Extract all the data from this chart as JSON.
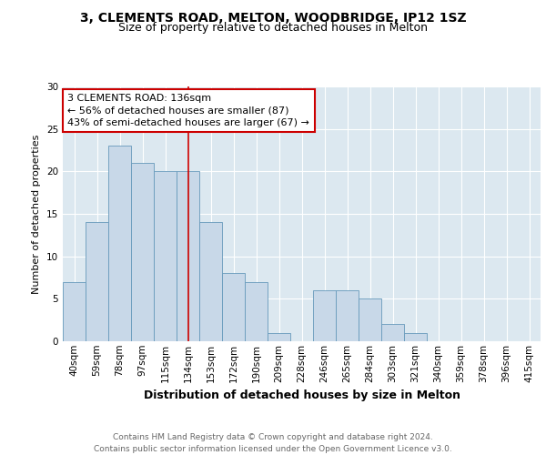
{
  "title1": "3, CLEMENTS ROAD, MELTON, WOODBRIDGE, IP12 1SZ",
  "title2": "Size of property relative to detached houses in Melton",
  "xlabel": "Distribution of detached houses by size in Melton",
  "ylabel": "Number of detached properties",
  "categories": [
    "40sqm",
    "59sqm",
    "78sqm",
    "97sqm",
    "115sqm",
    "134sqm",
    "153sqm",
    "172sqm",
    "190sqm",
    "209sqm",
    "228sqm",
    "246sqm",
    "265sqm",
    "284sqm",
    "303sqm",
    "321sqm",
    "340sqm",
    "359sqm",
    "378sqm",
    "396sqm",
    "415sqm"
  ],
  "values": [
    7,
    14,
    23,
    21,
    20,
    20,
    14,
    8,
    7,
    1,
    0,
    6,
    6,
    5,
    2,
    1,
    0,
    0,
    0,
    0,
    0
  ],
  "bar_color": "#c8d8e8",
  "bar_edge_color": "#6699bb",
  "reference_line_index": 5,
  "annotation_text": "3 CLEMENTS ROAD: 136sqm\n← 56% of detached houses are smaller (87)\n43% of semi-detached houses are larger (67) →",
  "annotation_box_color": "#ffffff",
  "annotation_box_edge_color": "#cc0000",
  "ylim": [
    0,
    30
  ],
  "yticks": [
    0,
    5,
    10,
    15,
    20,
    25,
    30
  ],
  "background_color": "#dce8f0",
  "plot_bg_color": "#dce8f0",
  "footer_text": "Contains HM Land Registry data © Crown copyright and database right 2024.\nContains public sector information licensed under the Open Government Licence v3.0.",
  "title1_fontsize": 10,
  "title2_fontsize": 9,
  "xlabel_fontsize": 9,
  "ylabel_fontsize": 8,
  "tick_fontsize": 7.5,
  "annotation_fontsize": 8,
  "footer_fontsize": 6.5
}
